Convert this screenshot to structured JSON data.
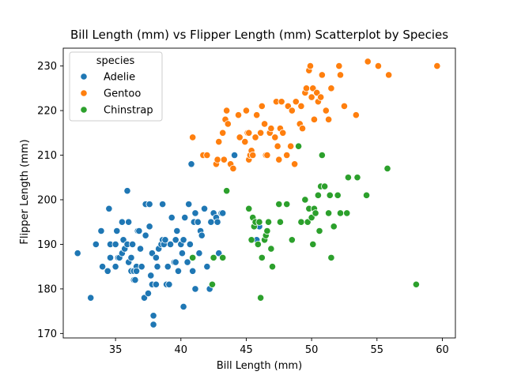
{
  "chart_data": {
    "type": "scatter",
    "title": "Bill Length (mm) vs Flipper Length (mm) Scatterplot by Species",
    "xlabel": "Bill Length (mm)",
    "ylabel": "Flipper Length (mm)",
    "xlim": [
      31.0,
      61.0
    ],
    "ylim": [
      169,
      234
    ],
    "xticks": [
      35,
      40,
      45,
      50,
      55,
      60
    ],
    "yticks": [
      170,
      180,
      190,
      200,
      210,
      220,
      230
    ],
    "grid": false,
    "legend": {
      "title": "species",
      "placement": "top-left"
    },
    "series": [
      {
        "name": "Adelie",
        "color": "#1f77b4",
        "points": [
          [
            32.1,
            188
          ],
          [
            33.1,
            178
          ],
          [
            33.5,
            190
          ],
          [
            33.9,
            193
          ],
          [
            34.0,
            185
          ],
          [
            34.4,
            184
          ],
          [
            34.5,
            198
          ],
          [
            34.6,
            190
          ],
          [
            34.6,
            187
          ],
          [
            35.0,
            190
          ],
          [
            35.0,
            185
          ],
          [
            35.1,
            193
          ],
          [
            35.2,
            187
          ],
          [
            35.3,
            187
          ],
          [
            35.5,
            195
          ],
          [
            35.5,
            188
          ],
          [
            35.6,
            191
          ],
          [
            35.7,
            189
          ],
          [
            35.9,
            202
          ],
          [
            35.9,
            190
          ],
          [
            36.0,
            195
          ],
          [
            36.0,
            186
          ],
          [
            36.2,
            187
          ],
          [
            36.2,
            184
          ],
          [
            36.3,
            190
          ],
          [
            36.4,
            184
          ],
          [
            36.4,
            182
          ],
          [
            36.5,
            182
          ],
          [
            36.6,
            185
          ],
          [
            36.6,
            184
          ],
          [
            36.7,
            193
          ],
          [
            36.8,
            193
          ],
          [
            36.9,
            189
          ],
          [
            37.0,
            185
          ],
          [
            37.2,
            178
          ],
          [
            37.3,
            199
          ],
          [
            37.3,
            192
          ],
          [
            37.5,
            179
          ],
          [
            37.6,
            199
          ],
          [
            37.6,
            194
          ],
          [
            37.7,
            183
          ],
          [
            37.8,
            181
          ],
          [
            37.8,
            188
          ],
          [
            37.9,
            172
          ],
          [
            37.9,
            174
          ],
          [
            38.1,
            181
          ],
          [
            38.1,
            187
          ],
          [
            38.2,
            185
          ],
          [
            38.3,
            189
          ],
          [
            38.5,
            190
          ],
          [
            38.6,
            191
          ],
          [
            38.6,
            199
          ],
          [
            38.7,
            190
          ],
          [
            38.8,
            191
          ],
          [
            38.9,
            181
          ],
          [
            39.0,
            185
          ],
          [
            39.1,
            181
          ],
          [
            39.2,
            190
          ],
          [
            39.3,
            196
          ],
          [
            39.5,
            186
          ],
          [
            39.6,
            191
          ],
          [
            39.6,
            186
          ],
          [
            39.7,
            193
          ],
          [
            39.8,
            184
          ],
          [
            40.0,
            190
          ],
          [
            40.1,
            188
          ],
          [
            40.2,
            176
          ],
          [
            40.2,
            191
          ],
          [
            40.3,
            196
          ],
          [
            40.5,
            186
          ],
          [
            40.6,
            199
          ],
          [
            40.7,
            190
          ],
          [
            40.8,
            208
          ],
          [
            40.9,
            184
          ],
          [
            41.0,
            195
          ],
          [
            41.1,
            197
          ],
          [
            41.1,
            180
          ],
          [
            41.3,
            195
          ],
          [
            41.4,
            188
          ],
          [
            41.5,
            193
          ],
          [
            41.6,
            192
          ],
          [
            41.8,
            198
          ],
          [
            42.0,
            185
          ],
          [
            42.2,
            180
          ],
          [
            42.3,
            195
          ],
          [
            42.5,
            197
          ],
          [
            42.7,
            196
          ],
          [
            42.8,
            195
          ],
          [
            42.9,
            188
          ],
          [
            43.1,
            197
          ],
          [
            43.2,
            197
          ],
          [
            44.1,
            210
          ],
          [
            45.8,
            191
          ],
          [
            46.0,
            194
          ]
        ]
      },
      {
        "name": "Gentoo",
        "color": "#ff7f0e",
        "points": [
          [
            40.9,
            214
          ],
          [
            41.7,
            210
          ],
          [
            42.0,
            210
          ],
          [
            42.7,
            208
          ],
          [
            42.8,
            209
          ],
          [
            42.9,
            213
          ],
          [
            43.2,
            215
          ],
          [
            43.3,
            209
          ],
          [
            43.4,
            218
          ],
          [
            43.5,
            220
          ],
          [
            43.6,
            217
          ],
          [
            43.8,
            208
          ],
          [
            44.0,
            207
          ],
          [
            44.4,
            219
          ],
          [
            44.5,
            214
          ],
          [
            44.9,
            213
          ],
          [
            45.0,
            220
          ],
          [
            45.1,
            215
          ],
          [
            45.2,
            209
          ],
          [
            45.2,
            215
          ],
          [
            45.3,
            210
          ],
          [
            45.4,
            211
          ],
          [
            45.5,
            210
          ],
          [
            45.7,
            214
          ],
          [
            45.8,
            219
          ],
          [
            46.1,
            215
          ],
          [
            46.2,
            221
          ],
          [
            46.4,
            217
          ],
          [
            46.5,
            210
          ],
          [
            46.6,
            210
          ],
          [
            46.8,
            215
          ],
          [
            46.9,
            216
          ],
          [
            47.2,
            214
          ],
          [
            47.3,
            222
          ],
          [
            47.4,
            212
          ],
          [
            47.5,
            209
          ],
          [
            47.6,
            216
          ],
          [
            47.7,
            222
          ],
          [
            47.8,
            215
          ],
          [
            48.1,
            210
          ],
          [
            48.2,
            221
          ],
          [
            48.4,
            212
          ],
          [
            48.5,
            220
          ],
          [
            48.7,
            208
          ],
          [
            48.8,
            222
          ],
          [
            49.0,
            212
          ],
          [
            49.1,
            217
          ],
          [
            49.2,
            221
          ],
          [
            49.3,
            216
          ],
          [
            49.5,
            224
          ],
          [
            49.6,
            225
          ],
          [
            49.8,
            229
          ],
          [
            49.9,
            230
          ],
          [
            50.0,
            223
          ],
          [
            50.1,
            225
          ],
          [
            50.2,
            218
          ],
          [
            50.4,
            224
          ],
          [
            50.5,
            222
          ],
          [
            50.7,
            223
          ],
          [
            50.8,
            228
          ],
          [
            51.1,
            220
          ],
          [
            51.3,
            218
          ],
          [
            51.5,
            225
          ],
          [
            52.1,
            230
          ],
          [
            52.2,
            228
          ],
          [
            52.5,
            221
          ],
          [
            53.4,
            219
          ],
          [
            54.3,
            231
          ],
          [
            55.1,
            230
          ],
          [
            55.9,
            228
          ],
          [
            59.6,
            230
          ]
        ]
      },
      {
        "name": "Chinstrap",
        "color": "#2ca02c",
        "points": [
          [
            40.9,
            187
          ],
          [
            42.4,
            181
          ],
          [
            42.5,
            187
          ],
          [
            43.2,
            187
          ],
          [
            43.5,
            202
          ],
          [
            45.2,
            198
          ],
          [
            45.4,
            191
          ],
          [
            45.5,
            196
          ],
          [
            45.6,
            194
          ],
          [
            45.7,
            195
          ],
          [
            45.9,
            190
          ],
          [
            46.0,
            195
          ],
          [
            46.1,
            178
          ],
          [
            46.2,
            187
          ],
          [
            46.4,
            191
          ],
          [
            46.5,
            192
          ],
          [
            46.6,
            193
          ],
          [
            46.7,
            195
          ],
          [
            46.9,
            189
          ],
          [
            47.0,
            185
          ],
          [
            47.5,
            199
          ],
          [
            47.6,
            195
          ],
          [
            48.1,
            199
          ],
          [
            48.5,
            191
          ],
          [
            49.0,
            212
          ],
          [
            49.2,
            195
          ],
          [
            49.5,
            200
          ],
          [
            49.7,
            195
          ],
          [
            49.8,
            198
          ],
          [
            50.0,
            196
          ],
          [
            50.1,
            190
          ],
          [
            50.2,
            198
          ],
          [
            50.3,
            197
          ],
          [
            50.5,
            201
          ],
          [
            50.6,
            193
          ],
          [
            50.7,
            203
          ],
          [
            50.8,
            210
          ],
          [
            51.0,
            203
          ],
          [
            51.3,
            197
          ],
          [
            51.4,
            201
          ],
          [
            51.5,
            187
          ],
          [
            51.7,
            194
          ],
          [
            52.0,
            201
          ],
          [
            52.2,
            197
          ],
          [
            52.7,
            197
          ],
          [
            52.8,
            205
          ],
          [
            53.5,
            205
          ],
          [
            54.2,
            201
          ],
          [
            55.8,
            207
          ],
          [
            58.0,
            181
          ]
        ]
      }
    ]
  }
}
